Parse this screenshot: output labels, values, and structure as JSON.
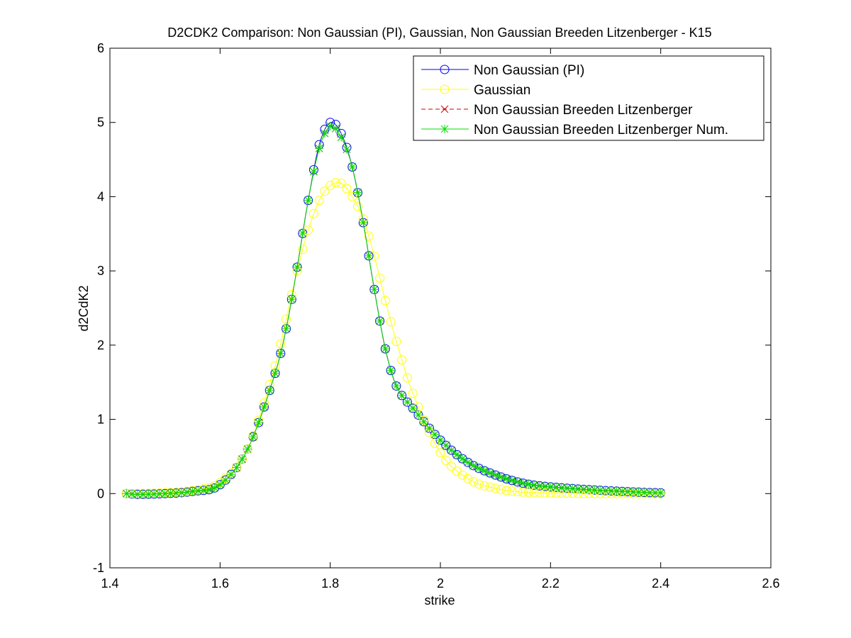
{
  "chart_data": {
    "type": "line",
    "title": "D2CDK2 Comparison: Non Gaussian (PI), Gaussian, Non Gaussian Breeden Litzenberger - K15",
    "xlabel": "strike",
    "ylabel": "d2CdK2",
    "xlim": [
      1.4,
      2.6
    ],
    "ylim": [
      -1,
      6
    ],
    "xticks": [
      "1.4",
      "1.6",
      "1.8",
      "2",
      "2.2",
      "2.4",
      "2.6"
    ],
    "yticks": [
      "-1",
      "0",
      "1",
      "2",
      "3",
      "4",
      "5",
      "6"
    ],
    "grid": false,
    "legend_position": "top-right",
    "x": [
      1.43,
      1.45,
      1.5,
      1.55,
      1.6,
      1.65,
      1.7,
      1.72,
      1.74,
      1.76,
      1.78,
      1.8,
      1.82,
      1.84,
      1.86,
      1.88,
      1.9,
      1.92,
      1.95,
      2.0,
      2.05,
      2.1,
      2.15,
      2.2,
      2.3,
      2.4
    ],
    "series": [
      {
        "name": "Non Gaussian (PI)",
        "color": "#0000ff",
        "line_style": "solid",
        "marker": "circle",
        "values": [
          0.0,
          -0.01,
          0.0,
          0.03,
          0.12,
          0.6,
          1.62,
          2.22,
          3.05,
          3.95,
          4.7,
          5.0,
          4.85,
          4.4,
          3.65,
          2.75,
          1.95,
          1.45,
          1.15,
          0.72,
          0.42,
          0.25,
          0.14,
          0.09,
          0.04,
          0.01
        ]
      },
      {
        "name": "Gaussian",
        "color": "#ffff00",
        "line_style": "solid",
        "marker": "circle",
        "values": [
          0.0,
          0.0,
          0.01,
          0.04,
          0.15,
          0.6,
          1.72,
          2.35,
          3.0,
          3.55,
          3.95,
          4.15,
          4.18,
          4.0,
          3.7,
          3.2,
          2.6,
          2.05,
          1.35,
          0.55,
          0.2,
          0.07,
          0.02,
          0.01,
          0.0,
          0.0
        ]
      },
      {
        "name": "Non Gaussian Breeden Litzenberger",
        "color": "#cc0000",
        "line_style": "dashed",
        "marker": "x",
        "values": [
          0.0,
          -0.01,
          0.0,
          0.03,
          0.12,
          0.6,
          1.62,
          2.22,
          3.05,
          3.95,
          4.65,
          4.95,
          4.8,
          4.4,
          3.65,
          2.75,
          1.95,
          1.45,
          1.15,
          0.72,
          0.42,
          0.25,
          0.14,
          0.09,
          0.04,
          0.01
        ]
      },
      {
        "name": "Non Gaussian Breeden Litzenberger Num.",
        "color": "#00dd00",
        "line_style": "solid",
        "marker": "asterisk",
        "values": [
          0.0,
          -0.01,
          0.0,
          0.03,
          0.12,
          0.6,
          1.62,
          2.22,
          3.05,
          3.95,
          4.65,
          4.95,
          4.8,
          4.4,
          3.65,
          2.75,
          1.95,
          1.45,
          1.15,
          0.72,
          0.42,
          0.25,
          0.14,
          0.09,
          0.04,
          0.01
        ]
      }
    ]
  }
}
